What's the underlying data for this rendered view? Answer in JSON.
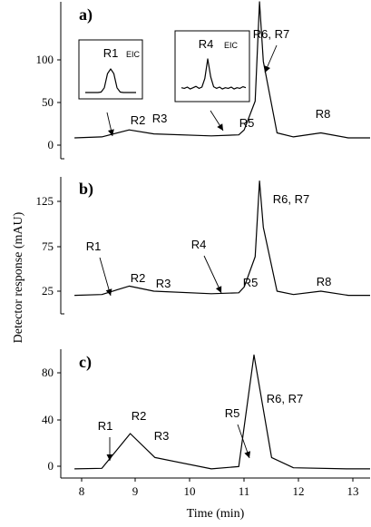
{
  "chart_data": [
    {
      "type": "line",
      "panel_label": "a)",
      "xlim": [
        7.75,
        13.4
      ],
      "ylim": [
        -8,
        150
      ],
      "yticks": [
        "0",
        "50",
        "100"
      ],
      "series": [
        {
          "x": [
            8.0,
            8.5,
            9.0,
            9.45,
            10.5,
            11.0,
            11.1,
            11.3,
            11.38,
            11.45,
            11.7,
            12.0,
            12.5,
            13.0,
            13.4
          ],
          "y": [
            13,
            14,
            21,
            17,
            15,
            16,
            21,
            50,
            150,
            90,
            18,
            14,
            18,
            13,
            13
          ]
        }
      ],
      "annotations": [
        {
          "text": "R1",
          "x": 8.53,
          "y": 14,
          "arrow": true
        },
        {
          "text": "R2",
          "x": 9.02,
          "y": 21
        },
        {
          "text": "R3",
          "x": 9.47,
          "y": 17
        },
        {
          "text": "R4",
          "x": 10.72,
          "y": 15,
          "arrow": true
        },
        {
          "text": "R5",
          "x": 11.1,
          "y": 21
        },
        {
          "text": "R6, R7",
          "x": 11.38,
          "y": 150,
          "arrow": true
        },
        {
          "text": "R8",
          "x": 12.5,
          "y": 18
        }
      ],
      "insets": [
        {
          "label": "R1",
          "sublabel": "EIC",
          "trace": [
            0,
            0,
            0,
            0,
            0,
            0.02,
            0.2,
            0.8,
            1,
            0.8,
            0.2,
            0.02,
            0,
            0,
            0,
            0,
            0
          ]
        },
        {
          "label": "R4",
          "sublabel": "EIC",
          "trace": [
            0.12,
            0.1,
            0.14,
            0.08,
            0.12,
            0.16,
            0.1,
            0.14,
            0.4,
            1,
            0.45,
            0.15,
            0.1,
            0.14,
            0.08,
            0.12,
            0.1,
            0.14,
            0.08,
            0.12,
            0.1,
            0.15,
            0.12
          ]
        }
      ]
    },
    {
      "type": "line",
      "panel_label": "b)",
      "xlim": [
        7.75,
        13.4
      ],
      "ylim": [
        -8,
        155
      ],
      "yticks": [
        "25",
        "75",
        "125"
      ],
      "series": [
        {
          "x": [
            8.0,
            8.5,
            9.0,
            9.45,
            10.5,
            11.0,
            11.1,
            11.3,
            11.38,
            11.45,
            11.7,
            12.0,
            12.5,
            13.0,
            13.4
          ],
          "y": [
            14,
            15,
            25,
            19,
            16,
            17,
            24,
            60,
            150,
            95,
            19,
            15,
            19,
            14,
            14
          ]
        }
      ],
      "annotations": [
        {
          "text": "R1",
          "x": 8.53,
          "y": 15,
          "arrow": true
        },
        {
          "text": "R2",
          "x": 9.02,
          "y": 25
        },
        {
          "text": "R3",
          "x": 9.47,
          "y": 19
        },
        {
          "text": "R4",
          "x": 10.72,
          "y": 16,
          "arrow": true
        },
        {
          "text": "R5",
          "x": 11.1,
          "y": 24
        },
        {
          "text": "R6, R7",
          "x": 11.38,
          "y": 150
        },
        {
          "text": "R8",
          "x": 12.5,
          "y": 19
        }
      ]
    },
    {
      "type": "line",
      "panel_label": "c)",
      "xlim": [
        7.75,
        13.4
      ],
      "ylim": [
        -8,
        105
      ],
      "xlabel": "Time (min)",
      "yticks": [
        "0",
        "40",
        "80"
      ],
      "xticks": [
        "8",
        "9",
        "10",
        "11",
        "12",
        "13"
      ],
      "series": [
        {
          "x": [
            8.0,
            8.5,
            9.02,
            9.47,
            10.5,
            11.0,
            11.28,
            11.6,
            12.0,
            13.0,
            13.4
          ],
          "y": [
            0,
            0.5,
            31,
            10,
            0,
            2,
            100,
            10,
            1,
            0,
            0
          ]
        }
      ],
      "annotations": [
        {
          "text": "R1",
          "x": 8.53,
          "y": 0.5,
          "arrow": true
        },
        {
          "text": "R2",
          "x": 9.02,
          "y": 31
        },
        {
          "text": "R3",
          "x": 9.47,
          "y": 10
        },
        {
          "text": "R5",
          "x": 11.0,
          "y": 2,
          "arrow": true
        },
        {
          "text": "R6, R7",
          "x": 11.28,
          "y": 100
        }
      ]
    }
  ],
  "ylabel": "Detector response (mAU)"
}
